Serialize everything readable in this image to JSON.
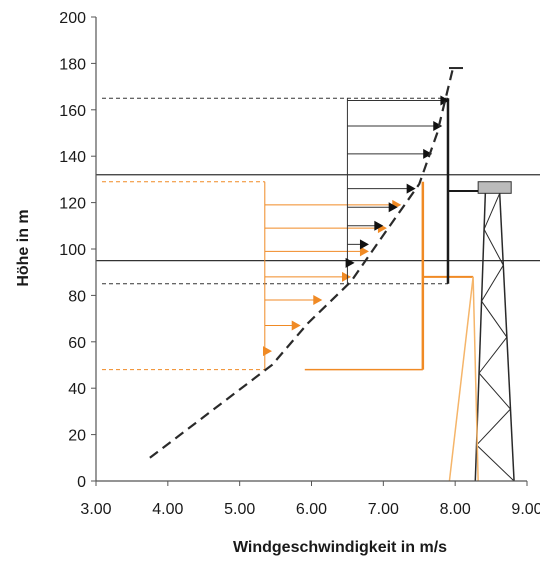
{
  "chart_data": {
    "type": "line",
    "title": "",
    "xlabel": "Windgeschwindigkeit in m/s",
    "ylabel": "Höhe in m",
    "xlim": [
      3.0,
      9.0
    ],
    "ylim": [
      0,
      200
    ],
    "xticks": [
      "3.00",
      "4.00",
      "5.00",
      "6.00",
      "7.00",
      "8.00",
      "9.00"
    ],
    "yticks": [
      "0",
      "20",
      "40",
      "60",
      "80",
      "100",
      "120",
      "140",
      "160",
      "180",
      "200"
    ],
    "grid": false,
    "legend": "none",
    "colors": {
      "profile": "#2a2a2a",
      "upper_rotor": "#1a1a1a",
      "lower_rotor": "#f08a24",
      "tower": "#2a2a2a"
    },
    "series": [
      {
        "values": [
          {
            "x": 3.75,
            "y": 10
          },
          {
            "x": 4.6,
            "y": 30
          },
          {
            "x": 5.45,
            "y": 50
          },
          {
            "x": 5.95,
            "y": 68
          },
          {
            "x": 6.55,
            "y": 86
          },
          {
            "x": 7.0,
            "y": 106
          },
          {
            "x": 7.5,
            "y": 128
          },
          {
            "x": 7.75,
            "y": 150
          },
          {
            "x": 7.97,
            "y": 178
          }
        ]
      }
    ],
    "rotor_high": {
      "hub_height": 125,
      "top": 165,
      "bottom": 85,
      "x_left": 6.5,
      "x_mean": 7.9,
      "arrows": [
        {
          "y": 94,
          "x": 6.6
        },
        {
          "y": 102,
          "x": 6.8
        },
        {
          "y": 110,
          "x": 7.0
        },
        {
          "y": 118,
          "x": 7.2
        },
        {
          "y": 126,
          "x": 7.45
        },
        {
          "y": 141,
          "x": 7.68
        },
        {
          "y": 153,
          "x": 7.82
        },
        {
          "y": 164,
          "x": 7.92
        }
      ]
    },
    "rotor_low": {
      "hub_height": 88,
      "top": 129,
      "bottom": 48,
      "x_left": 5.35,
      "x_mean": 7.55,
      "arrows": [
        {
          "y": 56,
          "x": 5.45
        },
        {
          "y": 67,
          "x": 5.85
        },
        {
          "y": 78,
          "x": 6.15
        },
        {
          "y": 88,
          "x": 6.55
        },
        {
          "y": 99,
          "x": 6.8
        },
        {
          "y": 109,
          "x": 7.05
        },
        {
          "y": 119,
          "x": 7.25
        }
      ]
    },
    "reference_lines": [
      {
        "y": 132,
        "style": "solid"
      },
      {
        "y": 95,
        "style": "solid"
      }
    ]
  }
}
